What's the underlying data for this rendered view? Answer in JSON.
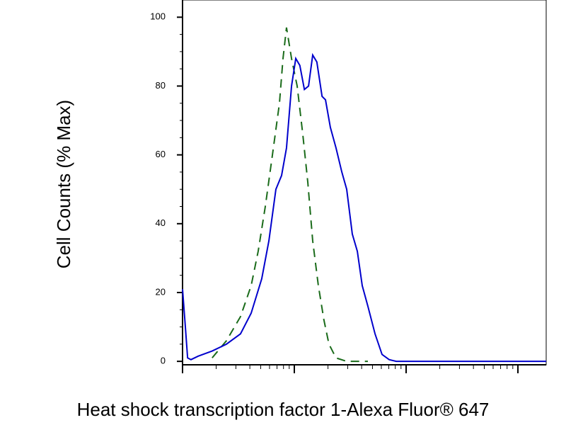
{
  "chart_data": {
    "type": "line",
    "x_label": "Heat shock transcription factor 1-Alexa Fluor® 647",
    "y_label": "Cell Counts (% Max)",
    "x_scale": "log",
    "xlim": [
      10,
      17900
    ],
    "xticks": [
      10,
      100,
      1000,
      10000
    ],
    "ylim": [
      -1,
      105
    ],
    "yticks": [
      0,
      20,
      40,
      60,
      80,
      100
    ],
    "series": [
      {
        "color": "#0000cc",
        "style": "solid",
        "x": [
          10,
          10.6,
          11.1,
          11.9,
          13.8,
          18.4,
          24.7,
          33.0,
          41.1,
          51.1,
          59.2,
          68.4,
          76.9,
          85.1,
          94.4,
          103,
          112,
          123,
          134,
          146,
          159,
          177,
          190,
          210,
          236,
          266,
          294,
          330,
          366,
          405,
          455,
          527,
          609,
          705,
          815,
          1460,
          6270,
          17900
        ],
        "values": [
          21,
          10,
          1,
          0.5,
          1.5,
          3,
          5,
          8,
          14,
          24,
          35,
          50,
          54,
          62,
          80,
          88,
          86,
          79,
          80,
          89,
          87,
          77,
          76,
          68,
          62,
          55,
          50,
          37,
          32,
          22,
          16,
          8,
          2,
          0.5,
          0,
          0,
          0,
          0
        ]
      },
      {
        "color": "#1a6b1a",
        "style": "dashed",
        "x": [
          18.4,
          24.7,
          33.0,
          41.1,
          47.5,
          55.0,
          63.7,
          73.6,
          79.2,
          85.1,
          94.4,
          106,
          119,
          132,
          146,
          164,
          184,
          204,
          236,
          294,
          455
        ],
        "values": [
          1,
          6,
          13,
          22,
          32,
          45,
          60,
          75,
          88,
          97,
          88,
          80,
          66,
          52,
          35,
          22,
          12,
          5,
          1,
          0,
          0
        ]
      }
    ]
  }
}
